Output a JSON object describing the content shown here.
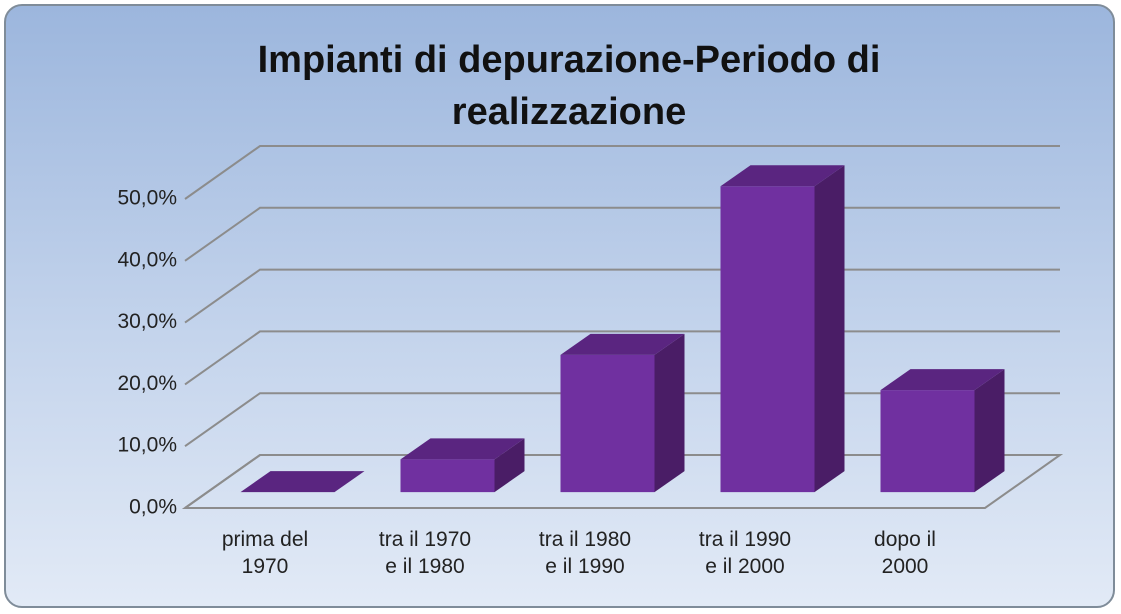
{
  "chart_data": {
    "type": "bar3d",
    "title": "Impianti di depurazione-Periodo di realizzazione",
    "categories": [
      "prima del 1970",
      "tra il 1970 e il 1980",
      "tra il 1980 e il 1990",
      "tra il 1990 e il 2000",
      "dopo il 2000"
    ],
    "values": [
      0,
      5.3,
      22.2,
      49.5,
      16.5
    ],
    "color": "#7030a0",
    "ylim": [
      0,
      50
    ],
    "yticks": [
      {
        "value": 0,
        "label": "0,0%"
      },
      {
        "value": 10,
        "label": "10,0%"
      },
      {
        "value": 20,
        "label": "20,0%"
      },
      {
        "value": 30,
        "label": "30,0%"
      },
      {
        "value": 40,
        "label": "40,0%"
      },
      {
        "value": 50,
        "label": "50,0%"
      }
    ],
    "grid": true
  }
}
